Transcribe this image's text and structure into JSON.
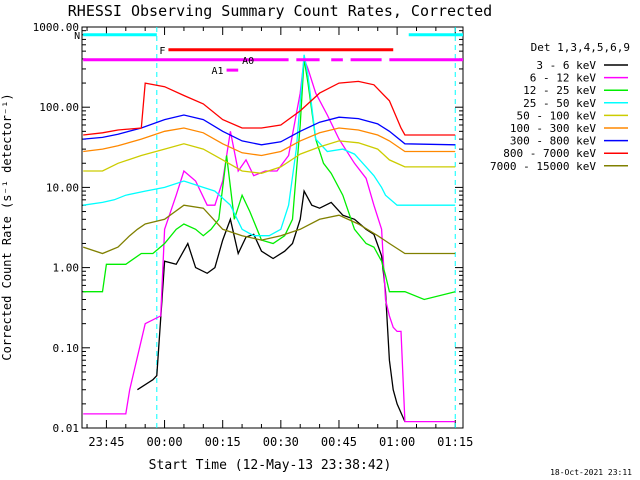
{
  "chart_data": {
    "type": "line",
    "title": "RHESSI Observing Summary Count Rates, Corrected",
    "xlabel": "Start Time (12-May-13 23:38:42)",
    "ylabel": "Corrected Count Rate (s⁻¹ detector⁻¹)",
    "yscale": "log",
    "ylim": [
      0.01,
      1000
    ],
    "y_ticks": [
      "1000.00",
      "100.00",
      "10.00",
      "1.00",
      "0.10",
      "0.01"
    ],
    "xlim_minutes_after_2330": [
      8.7,
      107
    ],
    "x_ticks": [
      {
        "label": "23:45",
        "min": 15
      },
      {
        "label": "00:00",
        "min": 30
      },
      {
        "label": "00:15",
        "min": 45
      },
      {
        "label": "00:30",
        "min": 60
      },
      {
        "label": "00:45",
        "min": 75
      },
      {
        "label": "01:00",
        "min": 90
      },
      {
        "label": "01:15",
        "min": 105
      }
    ],
    "legend_header": "Det 1,3,4,5,6,9",
    "legend_position": "right",
    "series": [
      {
        "name": "3 - 6 keV",
        "color": "#000000",
        "points": [
          [
            23,
            0.03
          ],
          [
            27,
            0.04
          ],
          [
            28,
            0.045
          ],
          [
            30,
            1.2
          ],
          [
            33,
            1.1
          ],
          [
            36,
            2.0
          ],
          [
            38,
            1.0
          ],
          [
            41,
            0.85
          ],
          [
            43,
            1.0
          ],
          [
            45,
            2.2
          ],
          [
            47,
            4.0
          ],
          [
            49,
            1.5
          ],
          [
            51,
            2.4
          ],
          [
            53,
            2.6
          ],
          [
            55,
            1.6
          ],
          [
            58,
            1.3
          ],
          [
            61,
            1.6
          ],
          [
            63,
            2.0
          ],
          [
            65,
            4.0
          ],
          [
            66,
            9.0
          ],
          [
            68,
            6.0
          ],
          [
            70,
            5.5
          ],
          [
            73,
            6.5
          ],
          [
            76,
            4.5
          ],
          [
            79,
            4.0
          ],
          [
            82,
            3.0
          ],
          [
            84,
            2.6
          ],
          [
            86,
            1.4
          ],
          [
            87,
            0.5
          ],
          [
            88,
            0.07
          ],
          [
            89,
            0.03
          ],
          [
            90,
            0.02
          ],
          [
            92,
            0.012
          ]
        ]
      },
      {
        "name": "6 - 12 keV",
        "color": "#ff00ff",
        "points": [
          [
            9,
            0.015
          ],
          [
            20,
            0.015
          ],
          [
            21,
            0.03
          ],
          [
            25,
            0.2
          ],
          [
            29,
            0.25
          ],
          [
            30,
            3
          ],
          [
            33,
            8
          ],
          [
            35,
            16
          ],
          [
            38,
            12
          ],
          [
            41,
            6
          ],
          [
            43,
            6
          ],
          [
            45,
            12
          ],
          [
            47,
            50
          ],
          [
            49,
            16
          ],
          [
            51,
            22
          ],
          [
            53,
            14
          ],
          [
            56,
            16
          ],
          [
            59,
            16
          ],
          [
            62,
            25
          ],
          [
            65,
            150
          ],
          [
            66,
            400
          ],
          [
            67,
            300
          ],
          [
            69,
            150
          ],
          [
            72,
            80
          ],
          [
            75,
            40
          ],
          [
            79,
            20
          ],
          [
            82,
            13
          ],
          [
            84,
            6
          ],
          [
            86,
            3
          ],
          [
            87,
            0.4
          ],
          [
            88,
            0.25
          ],
          [
            89,
            0.18
          ],
          [
            90,
            0.16
          ],
          [
            91,
            0.16
          ],
          [
            92,
            0.012
          ],
          [
            105,
            0.012
          ]
        ]
      },
      {
        "name": "12 - 25 keV",
        "color": "#00ee00",
        "points": [
          [
            9,
            0.5
          ],
          [
            14,
            0.5
          ],
          [
            15,
            1.1
          ],
          [
            20,
            1.1
          ],
          [
            24,
            1.5
          ],
          [
            27,
            1.5
          ],
          [
            30,
            2.0
          ],
          [
            33,
            3.0
          ],
          [
            35,
            3.5
          ],
          [
            38,
            3.0
          ],
          [
            40,
            2.5
          ],
          [
            42,
            3.0
          ],
          [
            44,
            4
          ],
          [
            46,
            25
          ],
          [
            48,
            4
          ],
          [
            50,
            8
          ],
          [
            52,
            5
          ],
          [
            55,
            2.2
          ],
          [
            58,
            2.0
          ],
          [
            61,
            2.5
          ],
          [
            63,
            4
          ],
          [
            65,
            60
          ],
          [
            66,
            400
          ],
          [
            67,
            200
          ],
          [
            69,
            40
          ],
          [
            71,
            20
          ],
          [
            73,
            15
          ],
          [
            76,
            8
          ],
          [
            79,
            3
          ],
          [
            82,
            2
          ],
          [
            84,
            1.8
          ],
          [
            86,
            1.2
          ],
          [
            87,
            0.8
          ],
          [
            88,
            0.5
          ],
          [
            92,
            0.5
          ],
          [
            97,
            0.4
          ],
          [
            105,
            0.5
          ]
        ]
      },
      {
        "name": "25 - 50 keV",
        "color": "#00ffff",
        "points": [
          [
            9,
            6
          ],
          [
            14,
            6.5
          ],
          [
            17,
            7
          ],
          [
            20,
            8
          ],
          [
            25,
            9
          ],
          [
            30,
            10
          ],
          [
            35,
            12
          ],
          [
            40,
            10
          ],
          [
            43,
            9
          ],
          [
            47,
            6
          ],
          [
            50,
            3
          ],
          [
            53,
            2.5
          ],
          [
            57,
            2.5
          ],
          [
            60,
            3
          ],
          [
            62,
            6
          ],
          [
            64,
            30
          ],
          [
            66,
            450
          ],
          [
            67,
            250
          ],
          [
            69,
            40
          ],
          [
            72,
            28
          ],
          [
            76,
            30
          ],
          [
            79,
            26
          ],
          [
            82,
            18
          ],
          [
            84,
            14
          ],
          [
            86,
            10
          ],
          [
            87,
            8
          ],
          [
            90,
            6
          ],
          [
            95,
            6
          ],
          [
            105,
            6
          ]
        ]
      },
      {
        "name": "50 - 100 keV",
        "color": "#cccc00",
        "points": [
          [
            9,
            16
          ],
          [
            14,
            16
          ],
          [
            18,
            20
          ],
          [
            24,
            25
          ],
          [
            30,
            30
          ],
          [
            35,
            35
          ],
          [
            40,
            30
          ],
          [
            45,
            22
          ],
          [
            50,
            16
          ],
          [
            55,
            15
          ],
          [
            60,
            18
          ],
          [
            65,
            26
          ],
          [
            70,
            32
          ],
          [
            75,
            38
          ],
          [
            80,
            36
          ],
          [
            85,
            30
          ],
          [
            88,
            22
          ],
          [
            92,
            18
          ],
          [
            105,
            18
          ]
        ]
      },
      {
        "name": "100 - 300 keV",
        "color": "#ff8800",
        "points": [
          [
            9,
            28
          ],
          [
            14,
            30
          ],
          [
            18,
            33
          ],
          [
            24,
            40
          ],
          [
            30,
            50
          ],
          [
            35,
            55
          ],
          [
            40,
            48
          ],
          [
            45,
            35
          ],
          [
            50,
            27
          ],
          [
            55,
            25
          ],
          [
            60,
            28
          ],
          [
            65,
            38
          ],
          [
            70,
            48
          ],
          [
            75,
            55
          ],
          [
            80,
            52
          ],
          [
            85,
            45
          ],
          [
            88,
            38
          ],
          [
            92,
            28
          ],
          [
            105,
            28
          ]
        ]
      },
      {
        "name": "300 - 800 keV",
        "color": "#0000ff",
        "points": [
          [
            9,
            40
          ],
          [
            14,
            42
          ],
          [
            18,
            46
          ],
          [
            24,
            55
          ],
          [
            30,
            70
          ],
          [
            35,
            80
          ],
          [
            40,
            70
          ],
          [
            45,
            50
          ],
          [
            50,
            38
          ],
          [
            55,
            34
          ],
          [
            60,
            37
          ],
          [
            65,
            50
          ],
          [
            70,
            65
          ],
          [
            75,
            75
          ],
          [
            80,
            72
          ],
          [
            85,
            62
          ],
          [
            88,
            50
          ],
          [
            92,
            35
          ],
          [
            105,
            34
          ]
        ]
      },
      {
        "name": "800 - 7000 keV",
        "color": "#ff0000",
        "points": [
          [
            9,
            45
          ],
          [
            14,
            48
          ],
          [
            18,
            52
          ],
          [
            24,
            55
          ],
          [
            25,
            200
          ],
          [
            30,
            180
          ],
          [
            35,
            140
          ],
          [
            40,
            110
          ],
          [
            45,
            70
          ],
          [
            50,
            55
          ],
          [
            55,
            55
          ],
          [
            60,
            60
          ],
          [
            65,
            90
          ],
          [
            70,
            150
          ],
          [
            75,
            200
          ],
          [
            80,
            210
          ],
          [
            84,
            190
          ],
          [
            88,
            120
          ],
          [
            91,
            55
          ],
          [
            92,
            45
          ],
          [
            105,
            45
          ]
        ]
      },
      {
        "name": "7000 - 15000 keV",
        "color": "#808000",
        "points": [
          [
            9,
            1.8
          ],
          [
            14,
            1.5
          ],
          [
            18,
            1.8
          ],
          [
            21,
            2.5
          ],
          [
            23,
            3
          ],
          [
            25,
            3.5
          ],
          [
            30,
            4
          ],
          [
            35,
            6
          ],
          [
            40,
            5.5
          ],
          [
            45,
            3
          ],
          [
            50,
            2.5
          ],
          [
            55,
            2.2
          ],
          [
            60,
            2.5
          ],
          [
            65,
            3
          ],
          [
            70,
            4
          ],
          [
            75,
            4.5
          ],
          [
            80,
            3.5
          ],
          [
            85,
            2.5
          ],
          [
            88,
            2
          ],
          [
            92,
            1.5
          ],
          [
            98,
            1.5
          ],
          [
            105,
            1.5
          ]
        ]
      }
    ],
    "status_bars": [
      {
        "label": "N",
        "color": "#00ffff",
        "level": 800,
        "segments": [
          [
            9,
            28
          ],
          [
            93,
            107
          ]
        ]
      },
      {
        "label": "F",
        "color": "#ff0000",
        "level": 520,
        "segments": [
          [
            31,
            89
          ]
        ]
      },
      {
        "label": "A0",
        "color": "#ff00ff",
        "level": 390,
        "segments": [
          [
            9,
            62
          ],
          [
            64,
            70
          ],
          [
            73,
            76
          ],
          [
            78,
            86
          ],
          [
            88,
            107
          ]
        ]
      },
      {
        "label": "A1",
        "color": "#ff00ff",
        "level": 290,
        "segments": [
          [
            46,
            49
          ]
        ]
      }
    ],
    "vertical_markers": [
      {
        "color": "#00ffff",
        "min": 28
      },
      {
        "color": "#00ffff",
        "min": 105
      }
    ],
    "footer_date": "18-Oct-2021 23:11"
  }
}
